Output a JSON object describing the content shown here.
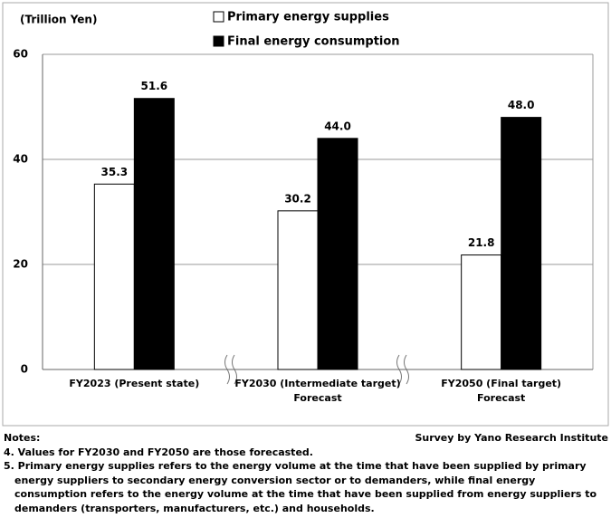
{
  "chart_data": {
    "type": "bar",
    "y_axis_label": "(Trillion Yen)",
    "categories": [
      "FY2023 (Present state)",
      "FY2030 (Intermediate target)\nForecast",
      "FY2050 (Final target)\nForecast"
    ],
    "series": [
      {
        "name": "Primary energy supplies",
        "color": "#ffffff",
        "values": [
          35.3,
          30.2,
          21.8
        ],
        "value_labels": [
          "35.3",
          "30.2",
          "21.8"
        ]
      },
      {
        "name": "Final energy consumption",
        "color": "#000000",
        "values": [
          51.6,
          44.0,
          48.0
        ],
        "value_labels": [
          "51.6",
          "44.0",
          "48.0"
        ]
      }
    ],
    "ylim": [
      0,
      60
    ],
    "yticks": [
      0,
      20,
      40,
      60
    ],
    "grid": true
  },
  "notes": {
    "heading": "Notes:",
    "items": [
      "4. Values for FY2030 and FY2050 are those forecasted.",
      "5. Primary energy supplies refers to the energy volume at the time that have been supplied by primary energy suppliers to secondary energy conversion sector or to demanders, while final energy consumption refers to the energy volume at the time that have been supplied from energy suppliers to demanders (transporters, manufacturers, etc.) and households."
    ]
  },
  "source": "Survey by Yano Research Institute"
}
